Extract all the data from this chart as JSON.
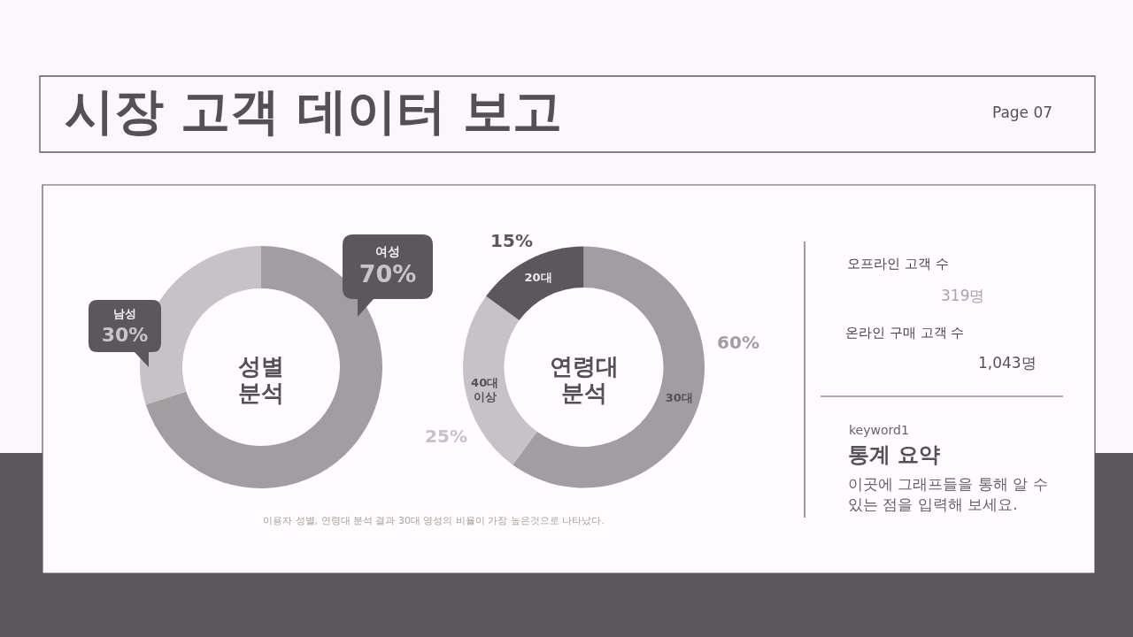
{
  "chart_data": [
    {
      "type": "other",
      "title": "시장 고객 데이터 보고",
      "annotations": [
        "Page 07"
      ]
    },
    {
      "type": "donut",
      "title": "성별 분석",
      "categories": [
        "여성",
        "남성"
      ],
      "values": [
        70,
        30
      ],
      "colors": [
        "#a19ea1",
        "#c6c3c6"
      ],
      "value_labels": [
        "70%",
        "30%"
      ]
    },
    {
      "type": "donut",
      "title": "연령대 분석",
      "categories": [
        "30대",
        "40대 이상",
        "20대"
      ],
      "values": [
        60,
        25,
        15
      ],
      "colors": [
        "#a19ea1",
        "#c6c3c6",
        "#5b575b"
      ],
      "value_labels": [
        "60%",
        "25%",
        "15%"
      ],
      "annotations": [
        "이용자 성별, 연령대 분석 결과 30대 영성의 비율이 가장 높은것으로 나타났다."
      ]
    },
    {
      "type": "other",
      "annotations": [
        "오프라인 고객 수",
        "319명",
        "온라인 구매 고객 수",
        "1,043명",
        "keyword1",
        "통계 요약",
        "이곳에 그래프들을 통해 알 수\n있는 점을 입력해 보세요."
      ]
    }
  ]
}
